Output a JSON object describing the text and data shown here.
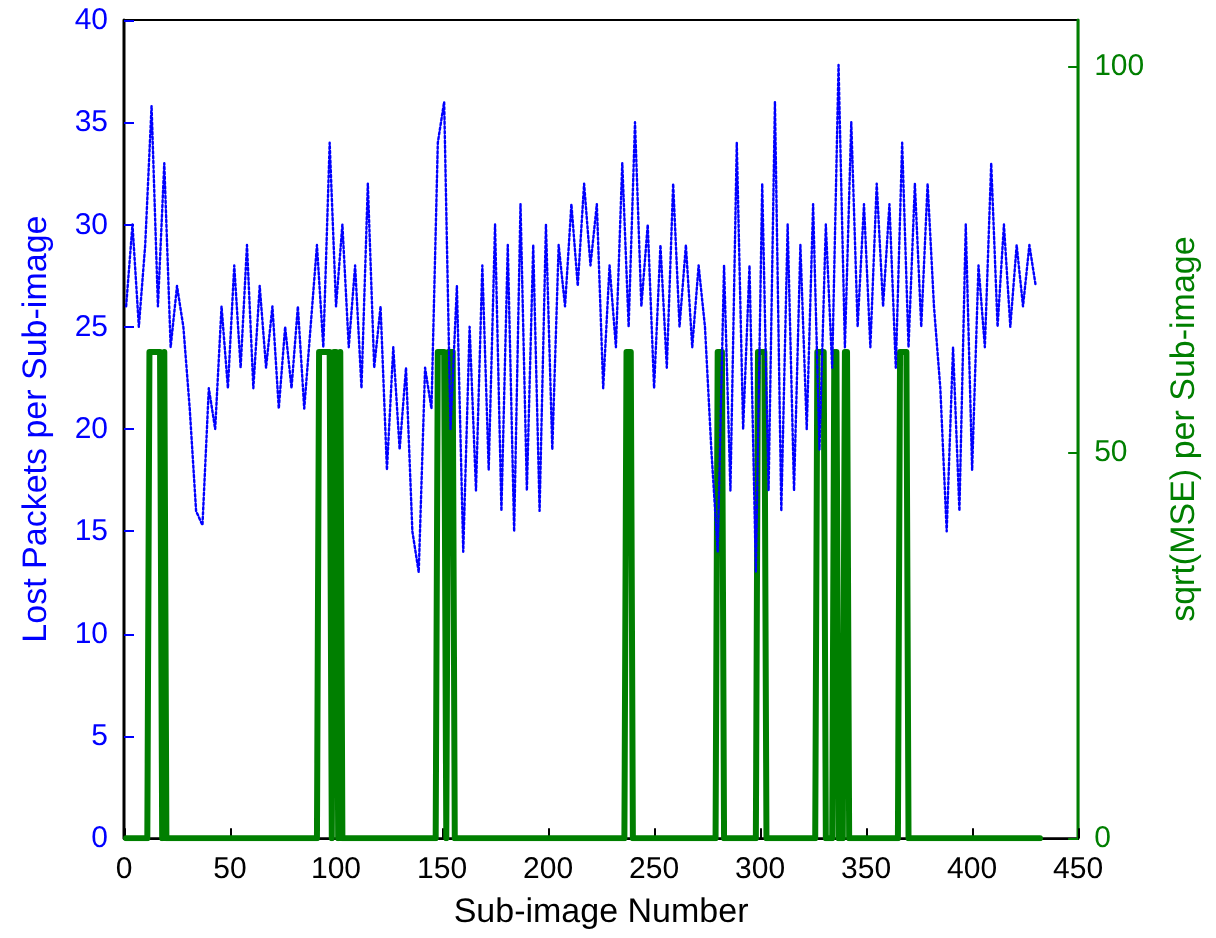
{
  "chart_data": {
    "type": "line",
    "xlabel": "Sub-image Number",
    "ylabel": "Lost Packets per Sub-image",
    "y2label": "sqrt(MSE) per Sub-image",
    "xlim": [
      0,
      450
    ],
    "xticks": [
      0,
      50,
      100,
      150,
      200,
      250,
      300,
      350,
      400,
      450
    ],
    "ylim": [
      0,
      40
    ],
    "yticks": [
      0,
      5,
      10,
      15,
      20,
      25,
      30,
      35,
      40
    ],
    "y2lim": [
      0,
      106
    ],
    "y2ticks": [
      0,
      50,
      100
    ],
    "grid": false,
    "marker": "none",
    "series": [
      {
        "color": "#0000ff",
        "line_style": "dotted",
        "x": [
          1,
          4,
          7,
          10,
          13,
          16,
          19,
          22,
          25,
          28,
          31,
          34,
          37,
          40,
          43,
          46,
          49,
          52,
          55,
          58,
          61,
          64,
          67,
          70,
          73,
          76,
          79,
          82,
          85,
          88,
          91,
          94,
          97,
          100,
          103,
          106,
          109,
          112,
          115,
          118,
          121,
          124,
          127,
          130,
          133,
          136,
          139,
          142,
          145,
          148,
          151,
          154,
          157,
          160,
          163,
          166,
          169,
          172,
          175,
          178,
          181,
          184,
          187,
          190,
          193,
          196,
          199,
          202,
          205,
          208,
          211,
          214,
          217,
          220,
          223,
          226,
          229,
          232,
          235,
          238,
          241,
          244,
          247,
          250,
          253,
          256,
          259,
          262,
          265,
          268,
          271,
          274,
          277,
          280,
          283,
          286,
          289,
          292,
          295,
          298,
          301,
          304,
          307,
          310,
          313,
          316,
          319,
          322,
          325,
          328,
          331,
          334,
          337,
          340,
          343,
          346,
          349,
          352,
          355,
          358,
          361,
          364,
          367,
          370,
          373,
          376,
          379,
          382,
          385,
          388,
          391,
          394,
          397,
          400,
          403,
          406,
          409,
          412,
          415,
          418,
          421,
          424,
          427,
          430
        ],
        "values": [
          26,
          30,
          25,
          29,
          35.8,
          26,
          33,
          24,
          27,
          25,
          21,
          16,
          15.3,
          22,
          20,
          26,
          22,
          28,
          23,
          29,
          22,
          27,
          23,
          26,
          21,
          25,
          22,
          26,
          21,
          25,
          29,
          24,
          34,
          26,
          30,
          24,
          28,
          22,
          32,
          23,
          26,
          18,
          24,
          19,
          23,
          15,
          13,
          23,
          21,
          34,
          36,
          20,
          27,
          14,
          25,
          17,
          28,
          18,
          30,
          16,
          29,
          15,
          31,
          17,
          29,
          16,
          30,
          19,
          29,
          26,
          31,
          27,
          32,
          28,
          31,
          22,
          28,
          24,
          33,
          25,
          35,
          26,
          30,
          22,
          29,
          23,
          32,
          25,
          29,
          24,
          28,
          25,
          19,
          14,
          28,
          17,
          34,
          20,
          28,
          13,
          32,
          17,
          36,
          16,
          30,
          17,
          29,
          20,
          31,
          19,
          30,
          23,
          37.8,
          24,
          35,
          25,
          31,
          24,
          32,
          26,
          31,
          23,
          34,
          24,
          32,
          25,
          32,
          26,
          22,
          15,
          24,
          16,
          30,
          18,
          28,
          24,
          33,
          25,
          30,
          25,
          29,
          26,
          29,
          27
        ]
      },
      {
        "color": "#007f00",
        "axis": "y2",
        "line_style": "solid",
        "x": [
          1,
          11,
          12,
          17,
          18,
          19,
          20,
          91,
          92,
          97,
          98,
          99,
          100,
          101,
          102,
          103,
          147,
          148,
          151,
          152,
          153,
          155,
          156,
          236,
          237,
          239,
          240,
          279,
          280,
          282,
          283,
          298,
          299,
          302,
          303,
          326,
          327,
          330,
          331,
          334,
          335,
          336,
          337,
          339,
          340,
          341,
          342,
          365,
          366,
          369,
          370,
          432
        ],
        "values": [
          0,
          0,
          63,
          63,
          0,
          63,
          0,
          0,
          63,
          63,
          0,
          63,
          63,
          0,
          63,
          0,
          0,
          63,
          63,
          0,
          63,
          63,
          0,
          0,
          63,
          63,
          0,
          0,
          63,
          63,
          0,
          0,
          63,
          63,
          0,
          0,
          63,
          63,
          0,
          0,
          63,
          63,
          0,
          0,
          63,
          63,
          0,
          0,
          63,
          63,
          0,
          0
        ]
      }
    ]
  }
}
